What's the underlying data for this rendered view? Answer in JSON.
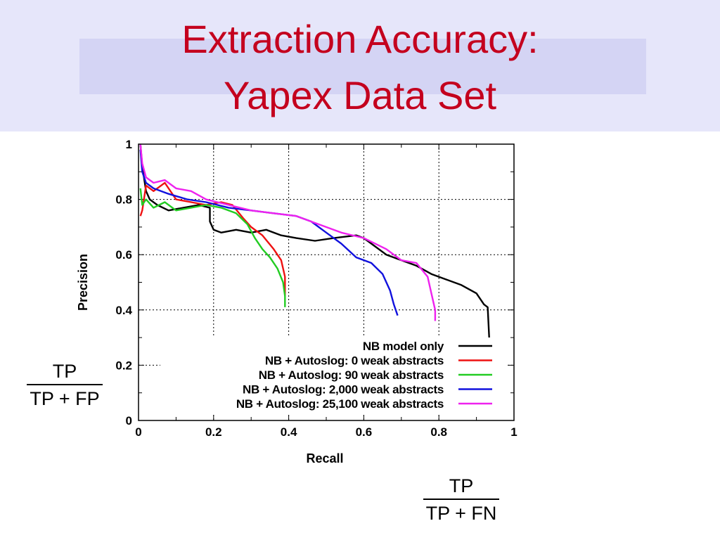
{
  "slide": {
    "title_line1": "Extraction Accuracy:",
    "title_line2": "Yapex Data Set",
    "precision_formula": {
      "numerator": "TP",
      "denominator": "TP + FP"
    },
    "recall_formula": {
      "numerator": "TP",
      "denominator": "TP + FN"
    }
  },
  "colors": {
    "title": "#c4001e",
    "header_band": "#e6e6fa",
    "header_inner": "#d4d4f4"
  },
  "chart_data": {
    "type": "line",
    "xlabel": "Recall",
    "ylabel": "Precision",
    "xlim": [
      0,
      1
    ],
    "ylim": [
      0,
      1
    ],
    "xticks": [
      "0",
      "0.2",
      "0.4",
      "0.6",
      "0.8",
      "1"
    ],
    "yticks": [
      "0",
      "0.2",
      "0.4",
      "0.6",
      "0.8",
      "1"
    ],
    "grid": true,
    "legend_position": "bottom-right",
    "series": [
      {
        "name": "NB model only",
        "color": "#000000",
        "points": [
          [
            0.005,
            1.0
          ],
          [
            0.01,
            0.92
          ],
          [
            0.02,
            0.83
          ],
          [
            0.03,
            0.8
          ],
          [
            0.05,
            0.78
          ],
          [
            0.08,
            0.76
          ],
          [
            0.12,
            0.77
          ],
          [
            0.16,
            0.78
          ],
          [
            0.19,
            0.77
          ],
          [
            0.19,
            0.72
          ],
          [
            0.2,
            0.69
          ],
          [
            0.22,
            0.68
          ],
          [
            0.26,
            0.69
          ],
          [
            0.3,
            0.68
          ],
          [
            0.34,
            0.69
          ],
          [
            0.38,
            0.67
          ],
          [
            0.42,
            0.66
          ],
          [
            0.47,
            0.65
          ],
          [
            0.52,
            0.66
          ],
          [
            0.58,
            0.67
          ],
          [
            0.6,
            0.66
          ],
          [
            0.62,
            0.64
          ],
          [
            0.66,
            0.6
          ],
          [
            0.7,
            0.58
          ],
          [
            0.74,
            0.56
          ],
          [
            0.78,
            0.53
          ],
          [
            0.82,
            0.51
          ],
          [
            0.86,
            0.49
          ],
          [
            0.9,
            0.46
          ],
          [
            0.92,
            0.42
          ],
          [
            0.93,
            0.41
          ],
          [
            0.935,
            0.27
          ],
          [
            0.945,
            0.27
          ]
        ]
      },
      {
        "name": "NB + Autoslog: 0 weak abstracts",
        "color": "#ee1111",
        "points": [
          [
            0.005,
            0.74
          ],
          [
            0.01,
            0.76
          ],
          [
            0.02,
            0.85
          ],
          [
            0.04,
            0.83
          ],
          [
            0.07,
            0.86
          ],
          [
            0.1,
            0.8
          ],
          [
            0.14,
            0.79
          ],
          [
            0.18,
            0.78
          ],
          [
            0.22,
            0.79
          ],
          [
            0.25,
            0.78
          ],
          [
            0.28,
            0.73
          ],
          [
            0.3,
            0.7
          ],
          [
            0.33,
            0.67
          ],
          [
            0.36,
            0.62
          ],
          [
            0.38,
            0.58
          ],
          [
            0.39,
            0.52
          ],
          [
            0.39,
            0.45
          ]
        ]
      },
      {
        "name": "NB + Autoslog: 90 weak abstracts",
        "color": "#22cc22",
        "points": [
          [
            0.005,
            0.84
          ],
          [
            0.01,
            0.78
          ],
          [
            0.02,
            0.8
          ],
          [
            0.04,
            0.77
          ],
          [
            0.07,
            0.79
          ],
          [
            0.1,
            0.76
          ],
          [
            0.14,
            0.77
          ],
          [
            0.18,
            0.78
          ],
          [
            0.22,
            0.77
          ],
          [
            0.26,
            0.75
          ],
          [
            0.29,
            0.71
          ],
          [
            0.31,
            0.66
          ],
          [
            0.33,
            0.62
          ],
          [
            0.35,
            0.59
          ],
          [
            0.37,
            0.55
          ],
          [
            0.385,
            0.5
          ],
          [
            0.39,
            0.45
          ],
          [
            0.39,
            0.41
          ]
        ]
      },
      {
        "name": "NB + Autoslog: 2,000 weak abstracts",
        "color": "#1111dd",
        "points": [
          [
            0.005,
            0.98
          ],
          [
            0.01,
            0.9
          ],
          [
            0.02,
            0.86
          ],
          [
            0.04,
            0.84
          ],
          [
            0.08,
            0.82
          ],
          [
            0.13,
            0.8
          ],
          [
            0.18,
            0.79
          ],
          [
            0.24,
            0.77
          ],
          [
            0.3,
            0.76
          ],
          [
            0.36,
            0.75
          ],
          [
            0.42,
            0.74
          ],
          [
            0.46,
            0.72
          ],
          [
            0.5,
            0.68
          ],
          [
            0.54,
            0.64
          ],
          [
            0.58,
            0.59
          ],
          [
            0.62,
            0.57
          ],
          [
            0.65,
            0.53
          ],
          [
            0.67,
            0.47
          ],
          [
            0.68,
            0.42
          ],
          [
            0.69,
            0.38
          ]
        ]
      },
      {
        "name": "NB + Autoslog: 25,100 weak abstracts",
        "color": "#ee22ee",
        "points": [
          [
            0.005,
            1.0
          ],
          [
            0.01,
            0.93
          ],
          [
            0.02,
            0.88
          ],
          [
            0.04,
            0.86
          ],
          [
            0.07,
            0.87
          ],
          [
            0.1,
            0.84
          ],
          [
            0.14,
            0.83
          ],
          [
            0.18,
            0.8
          ],
          [
            0.24,
            0.78
          ],
          [
            0.3,
            0.76
          ],
          [
            0.36,
            0.75
          ],
          [
            0.42,
            0.74
          ],
          [
            0.48,
            0.71
          ],
          [
            0.54,
            0.68
          ],
          [
            0.6,
            0.66
          ],
          [
            0.66,
            0.62
          ],
          [
            0.7,
            0.58
          ],
          [
            0.74,
            0.57
          ],
          [
            0.77,
            0.52
          ],
          [
            0.78,
            0.46
          ],
          [
            0.79,
            0.4
          ],
          [
            0.79,
            0.36
          ]
        ]
      }
    ]
  }
}
